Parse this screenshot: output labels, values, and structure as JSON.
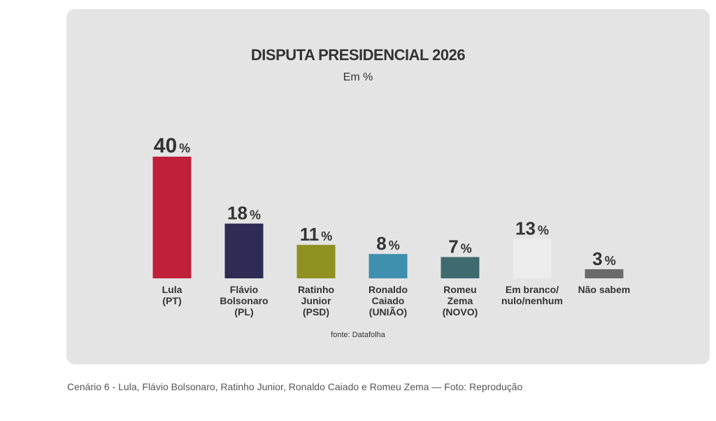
{
  "chart_data": {
    "type": "bar",
    "title": "DISPUTA PRESIDENCIAL 2026",
    "subtitle": "Em %",
    "unit": "%",
    "categories": [
      [
        "Lula",
        "(PT)"
      ],
      [
        "Flávio",
        "Bolsonaro",
        "(PL)"
      ],
      [
        "Ratinho",
        "Junior",
        "(PSD)"
      ],
      [
        "Ronaldo",
        "Caiado",
        "(UNIÃO)"
      ],
      [
        "Romeu",
        "Zema",
        "(NOVO)"
      ],
      [
        "Em branco/",
        "nulo/nenhum"
      ],
      [
        "Não sabem"
      ]
    ],
    "values": [
      40,
      18,
      11,
      8,
      7,
      13,
      3
    ],
    "colors": [
      "#c0203a",
      "#2e2b55",
      "#8f9120",
      "#3f8fae",
      "#3f6a70",
      "#ededed",
      "#6a6a6a"
    ],
    "xlabel": "",
    "ylabel": "",
    "grid": false,
    "source": "fonte: Datafolha"
  },
  "caption": "Cenário 6 - Lula, Flávio Bolsonaro, Ratinho Junior, Ronaldo Caiado e Romeu Zema — Foto: Reprodução"
}
